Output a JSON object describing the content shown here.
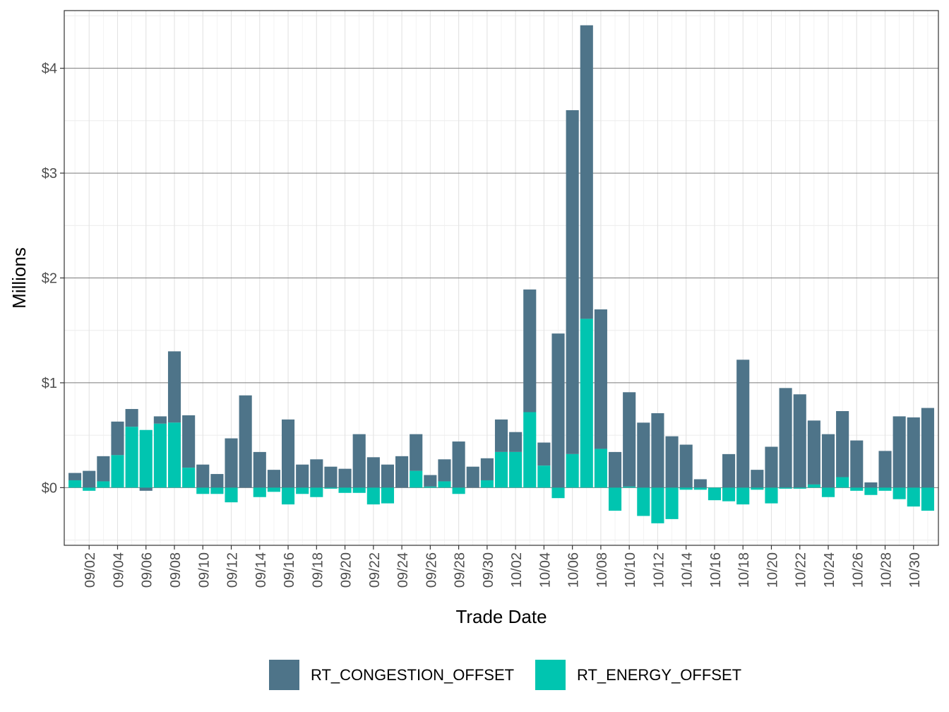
{
  "chart_data": {
    "type": "bar",
    "stacked": true,
    "xlabel": "Trade Date",
    "ylabel": "Millions",
    "ylim": [
      -0.55,
      4.55
    ],
    "y_ticks": [
      0,
      1,
      2,
      3,
      4
    ],
    "y_tick_labels": [
      "$0",
      "$1",
      "$2",
      "$3",
      "$4"
    ],
    "x_tick_labels": [
      "09/02",
      "09/04",
      "09/06",
      "09/08",
      "09/10",
      "09/12",
      "09/14",
      "09/16",
      "09/18",
      "09/20",
      "09/22",
      "09/24",
      "09/26",
      "09/28",
      "09/30",
      "10/02",
      "10/04",
      "10/06",
      "10/08",
      "10/10",
      "10/12",
      "10/14",
      "10/16",
      "10/18",
      "10/20",
      "10/22",
      "10/24",
      "10/26",
      "10/28",
      "10/30"
    ],
    "grid": true,
    "legend_position": "bottom",
    "categories": [
      "09/01",
      "09/02",
      "09/03",
      "09/04",
      "09/05",
      "09/06",
      "09/07",
      "09/08",
      "09/09",
      "09/10",
      "09/11",
      "09/12",
      "09/13",
      "09/14",
      "09/15",
      "09/16",
      "09/17",
      "09/18",
      "09/19",
      "09/20",
      "09/21",
      "09/22",
      "09/23",
      "09/24",
      "09/25",
      "09/26",
      "09/27",
      "09/28",
      "09/29",
      "09/30",
      "10/01",
      "10/02",
      "10/03",
      "10/04",
      "10/05",
      "10/06",
      "10/07",
      "10/08",
      "10/09",
      "10/10",
      "10/11",
      "10/12",
      "10/13",
      "10/14",
      "10/15",
      "10/16",
      "10/17",
      "10/18",
      "10/19",
      "10/20",
      "10/21",
      "10/22",
      "10/23",
      "10/24",
      "10/25",
      "10/26",
      "10/27",
      "10/28",
      "10/29",
      "10/30",
      "10/31"
    ],
    "series": [
      {
        "name": "RT_CONGESTION_OFFSET",
        "color": "#4e7489",
        "values": [
          0.07,
          0.16,
          0.24,
          0.32,
          0.17,
          -0.03,
          0.07,
          0.68,
          0.5,
          0.22,
          0.13,
          0.47,
          0.88,
          0.34,
          0.17,
          0.65,
          0.22,
          0.27,
          0.2,
          0.18,
          0.51,
          0.29,
          0.22,
          0.3,
          0.35,
          0.11,
          0.21,
          0.44,
          0.2,
          0.21,
          0.31,
          0.19,
          1.17,
          0.22,
          1.47,
          3.28,
          2.8,
          1.33,
          0.34,
          0.9,
          0.62,
          0.71,
          0.49,
          0.41,
          0.08,
          0.0,
          0.32,
          1.22,
          0.17,
          0.39,
          0.95,
          0.89,
          0.61,
          0.51,
          0.63,
          0.45,
          0.05,
          0.35,
          0.68,
          0.67,
          0.76
        ]
      },
      {
        "name": "RT_ENERGY_OFFSET",
        "color": "#00c5b0",
        "values": [
          0.07,
          -0.03,
          0.06,
          0.31,
          0.58,
          0.55,
          0.61,
          0.62,
          0.19,
          -0.06,
          -0.06,
          -0.14,
          0.0,
          -0.09,
          -0.04,
          -0.16,
          -0.06,
          -0.09,
          -0.01,
          -0.05,
          -0.05,
          -0.16,
          -0.15,
          0.0,
          0.16,
          0.01,
          0.06,
          -0.06,
          0.0,
          0.07,
          0.34,
          0.34,
          0.72,
          0.21,
          -0.1,
          0.32,
          1.61,
          0.37,
          -0.22,
          0.01,
          -0.27,
          -0.34,
          -0.3,
          -0.02,
          -0.02,
          -0.12,
          -0.13,
          -0.16,
          -0.02,
          -0.15,
          -0.01,
          -0.01,
          0.03,
          -0.09,
          0.1,
          -0.03,
          -0.07,
          -0.03,
          -0.11,
          -0.18,
          -0.22
        ]
      }
    ]
  }
}
